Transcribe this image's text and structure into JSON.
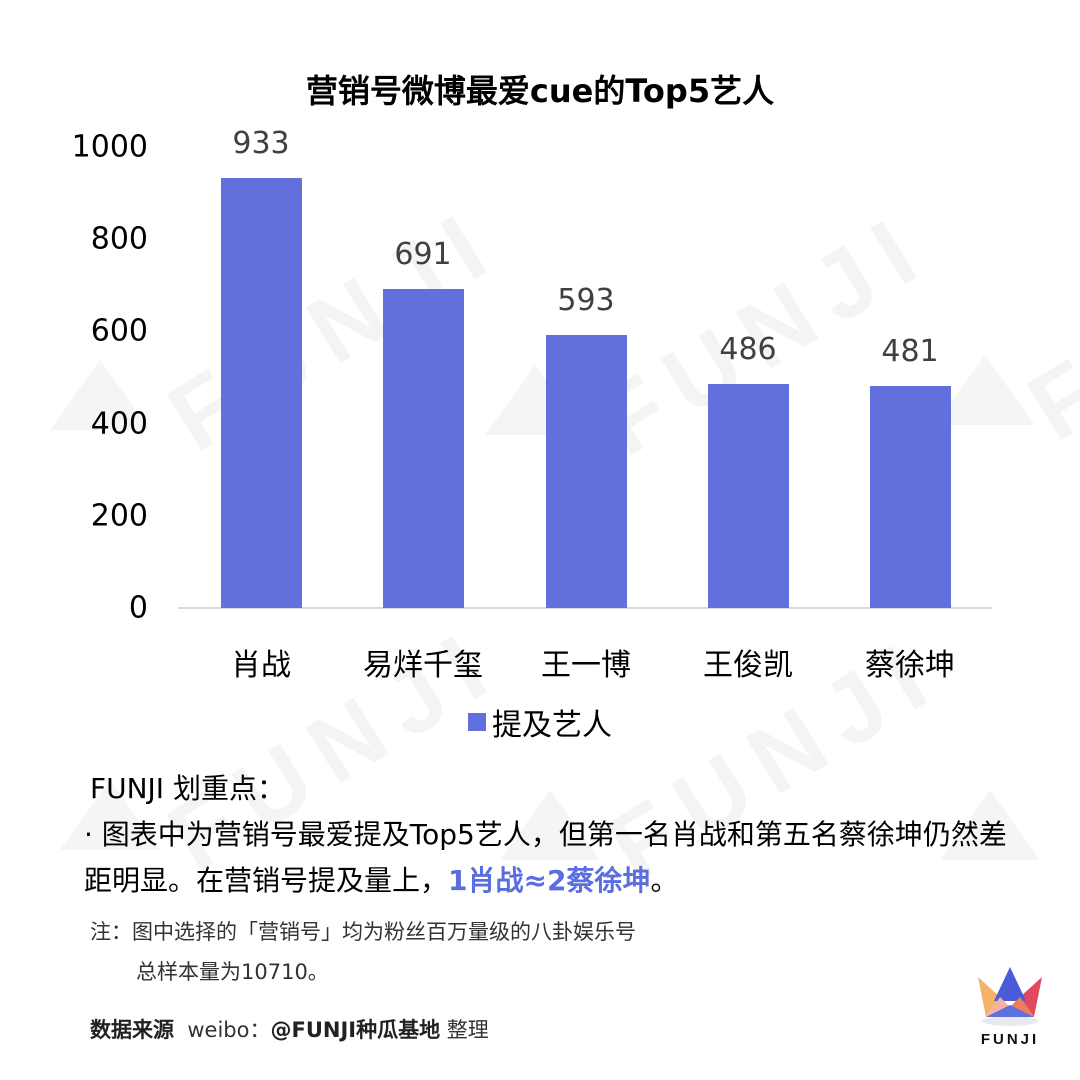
{
  "watermark": {
    "text": "FUNJI"
  },
  "chart_data": {
    "type": "bar",
    "title": "营销号微博最爱cue的Top5艺人",
    "categories": [
      "肖战",
      "易烊千玺",
      "王一博",
      "王俊凯",
      "蔡徐坤"
    ],
    "series": [
      {
        "name": "提及艺人",
        "values": [
          933,
          691,
          593,
          486,
          481
        ]
      }
    ],
    "values": [
      933,
      691,
      593,
      486,
      481
    ],
    "xlabel": "",
    "ylabel": "",
    "ylim": [
      0,
      1000
    ],
    "yticks": [
      "1000",
      "800",
      "600",
      "400",
      "200",
      "0"
    ],
    "grid": false,
    "legend_position": "bottom",
    "data_labels": [
      "933",
      "691",
      "593",
      "486",
      "481"
    ],
    "bar_color": "#6170dc"
  },
  "notes": {
    "heading": "FUNJI 划重点：",
    "bullet_text": "· 图表中为营销号最爱提及Top5艺人，但第一名肖战和第五名蔡徐坤仍然差距明显。在营销号提及量上，",
    "highlight": "1肖战≈2蔡徐坤",
    "tail": "。",
    "highlight_color": "#5b6ee0"
  },
  "footnote": {
    "line1": "注：图中选择的「营销号」均为粉丝百万量级的八卦娱乐号",
    "line2": "总样本量为10710。"
  },
  "source": {
    "label": "数据来源",
    "platform": "weibo：",
    "account": "@FUNJI种瓜基地",
    "suffix": "整理"
  },
  "logo": {
    "text": "FUNJI"
  }
}
